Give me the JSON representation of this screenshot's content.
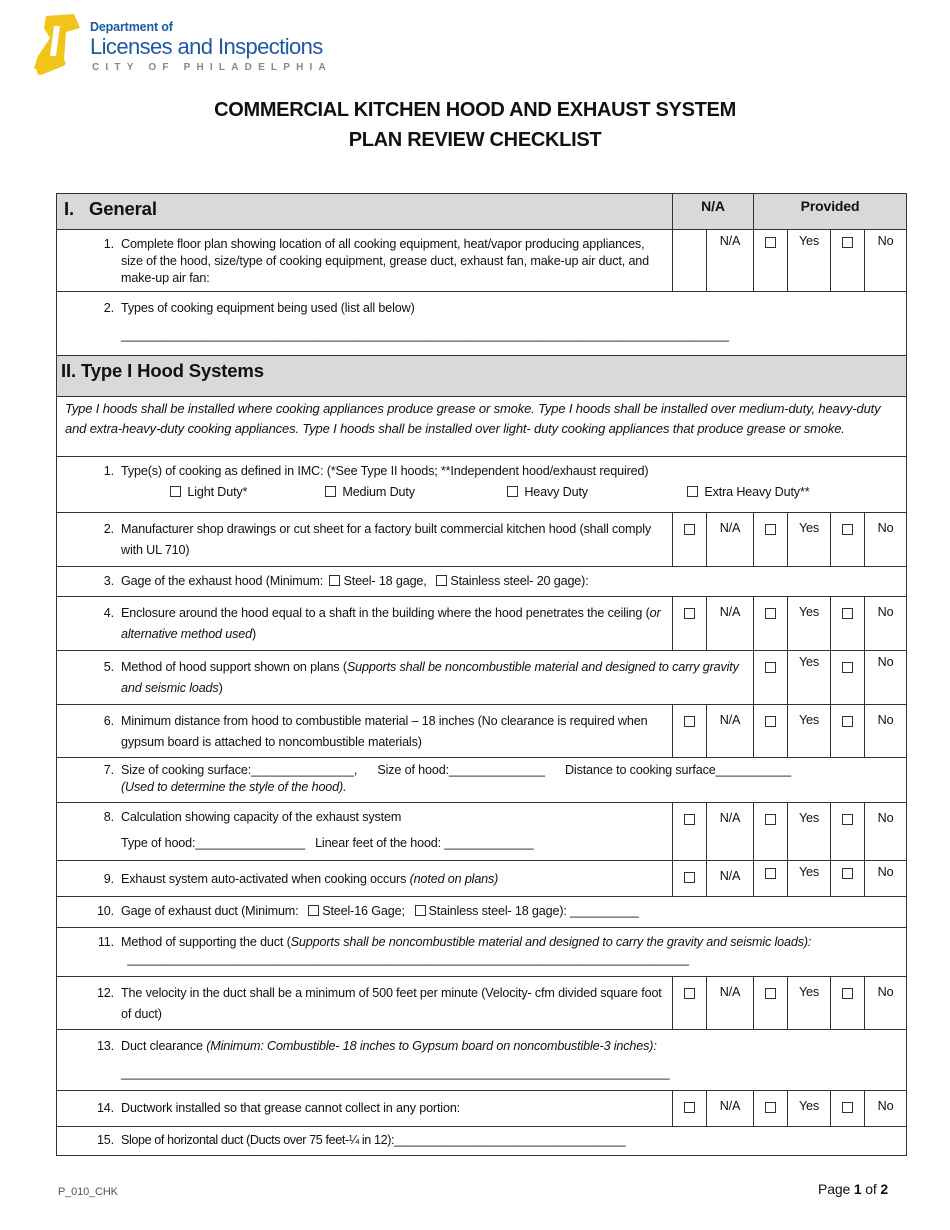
{
  "header": {
    "logo_line1": "Department of",
    "logo_line2": "Licenses and Inspections",
    "logo_line3": "CITY OF PHILADELPHIA",
    "logo_color": "#1d5aa0",
    "bell_color": "#f2c318"
  },
  "title": {
    "line1": "COMMERCIAL KITCHEN HOOD AND EXHAUST SYSTEM",
    "line2": "PLAN REVIEW CHECKLIST"
  },
  "options": {
    "na": "N/A",
    "yes": "Yes",
    "no": "No"
  },
  "section1": {
    "num": "I.",
    "title": "General",
    "col_na": "N/A",
    "col_provided": "Provided",
    "items": [
      {
        "num": "1.",
        "text": "Complete floor plan showing location of all cooking equipment, heat/vapor producing appliances, size of the hood, size/type of cooking equipment, grease duct, exhaust fan, make-up air duct, and make-up air fan:"
      },
      {
        "num": "2.",
        "text": "Types of cooking equipment being used (list all below)",
        "blank": "____________________________________________________________________________________________"
      }
    ]
  },
  "section2": {
    "title": "II. Type I Hood Systems",
    "intro": "Type I hoods shall be installed where cooking appliances produce grease or smoke. Type I hoods shall be installed over medium-duty, heavy-duty and extra-heavy-duty cooking appliances. Type I hoods shall be installed over light- duty cooking appliances that produce grease or smoke.",
    "items": [
      {
        "num": "1.",
        "text": "Type(s) of cooking as defined in IMC: (*See Type II hoods; **Independent hood/exhaust required)",
        "duties": [
          "Light Duty*",
          "Medium Duty",
          "Heavy Duty",
          "Extra Heavy Duty**"
        ]
      },
      {
        "num": "2.",
        "text": "Manufacturer shop drawings or cut sheet for a factory built commercial kitchen hood (shall comply with UL 710)"
      },
      {
        "num": "3.",
        "text": "Gage of the exhaust hood (Minimum:",
        "opt1": "Steel- 18 gage,",
        "opt2": "Stainless steel- 20 gage):"
      },
      {
        "num": "4.",
        "text": "Enclosure around the hood equal to a shaft in the building where the hood penetrates the ceiling (",
        "italic": "or alternative method used",
        "after": ")"
      },
      {
        "num": "5.",
        "text": "Method of hood support shown on plans (",
        "italic": "Supports shall be noncombustible material and designed to carry gravity and seismic loads",
        "after": ")"
      },
      {
        "num": "6.",
        "text": "Minimum distance from hood to combustible material – 18 inches (No clearance is required when gypsum board is attached to noncombustible materials)"
      },
      {
        "num": "7.",
        "text": "Size of cooking surface:_______________,      Size of hood:______________      Distance to cooking surface___________",
        "italic": "(Used to determine the style of the hood)."
      },
      {
        "num": "8.",
        "text": "Calculation showing capacity of the exhaust system",
        "line2": "Type of hood:________________   Linear feet of the hood: _____________"
      },
      {
        "num": "9.",
        "text": "Exhaust system auto-activated when cooking occurs ",
        "italic": "(noted on plans)"
      },
      {
        "num": "10.",
        "text": "Gage of exhaust duct (Minimum:",
        "opt1": "Steel-16 Gage;",
        "opt2": "Stainless steel- 18 gage): __________"
      },
      {
        "num": "11.",
        "text": "Method of supporting the duct (",
        "italic": "Supports shall be noncombustible material and designed to carry the gravity and seismic loads):",
        "after": "  _____________________________________________________________________________________"
      },
      {
        "num": "12.",
        "text": "The velocity in the duct shall be a minimum of 500 feet per minute (Velocity- cfm divided square foot of duct)"
      },
      {
        "num": "13.",
        "text": "Duct clearance ",
        "italic": "(Minimum: Combustible- 18 inches to Gypsum board on noncombustible-3 inches):",
        "blank": "___________________________________________________________________________________"
      },
      {
        "num": "14.",
        "text": "Ductwork installed so that grease cannot collect in any portion:"
      },
      {
        "num": "15.",
        "text": "Slope of horizontal duct (Ducts over 75 feet-¼ in 12):___________________________________"
      }
    ]
  },
  "footer": {
    "form_code": "P_010_CHK",
    "page_label": "Page",
    "page": "1",
    "of": "of",
    "total": "2"
  }
}
